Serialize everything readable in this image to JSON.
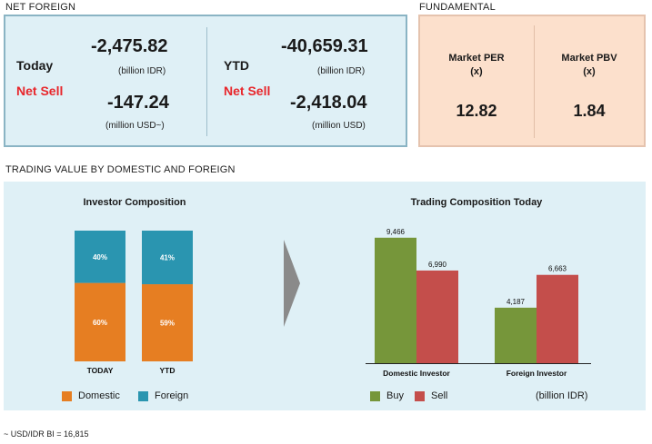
{
  "net_foreign": {
    "section_title": "NET FOREIGN",
    "today": {
      "label": "Today",
      "status": "Net Sell",
      "idr_value": "-2,475.82",
      "idr_unit": "(billion IDR)",
      "usd_value": "-147.24",
      "usd_unit": "(million USD~)"
    },
    "ytd": {
      "label": "YTD",
      "status": "Net Sell",
      "idr_value": "-40,659.31",
      "idr_unit": "(billion IDR)",
      "usd_value": "-2,418.04",
      "usd_unit": "(million USD)"
    }
  },
  "fundamental": {
    "section_title": "FUNDAMENTAL",
    "per": {
      "label": "Market PER",
      "unit": "(x)",
      "value": "12.82"
    },
    "pbv": {
      "label": "Market PBV",
      "unit": "(x)",
      "value": "1.84"
    }
  },
  "trading": {
    "section_title": "TRADING VALUE BY DOMESTIC AND FOREIGN",
    "unit_note": "(billion IDR)"
  },
  "footnote": "~ USD/IDR BI = 16,815",
  "colors": {
    "domestic": "#e67e22",
    "foreign": "#2a95b0",
    "buy": "#76963a",
    "sell": "#c44e4b",
    "arrow": "#8a8a8a"
  },
  "chart_data": [
    {
      "type": "bar",
      "stacked": true,
      "percent": true,
      "title": "Investor Composition",
      "categories": [
        "TODAY",
        "YTD"
      ],
      "series": [
        {
          "name": "Domestic",
          "values": [
            60,
            59
          ],
          "labels": [
            "60%",
            "59%"
          ]
        },
        {
          "name": "Foreign",
          "values": [
            40,
            41
          ],
          "labels": [
            "40%",
            "41%"
          ]
        }
      ],
      "ylim": [
        0,
        100
      ],
      "legend": "bottom"
    },
    {
      "type": "bar",
      "title": "Trading Composition Today",
      "categories": [
        "Domestic Investor",
        "Foreign Investor"
      ],
      "series": [
        {
          "name": "Buy",
          "values": [
            9466,
            4187
          ],
          "labels": [
            "9,466",
            "4,187"
          ]
        },
        {
          "name": "Sell",
          "values": [
            6990,
            6663
          ],
          "labels": [
            "6,990",
            "6,663"
          ]
        }
      ],
      "ylim": [
        0,
        10000
      ],
      "legend": "bottom"
    }
  ]
}
